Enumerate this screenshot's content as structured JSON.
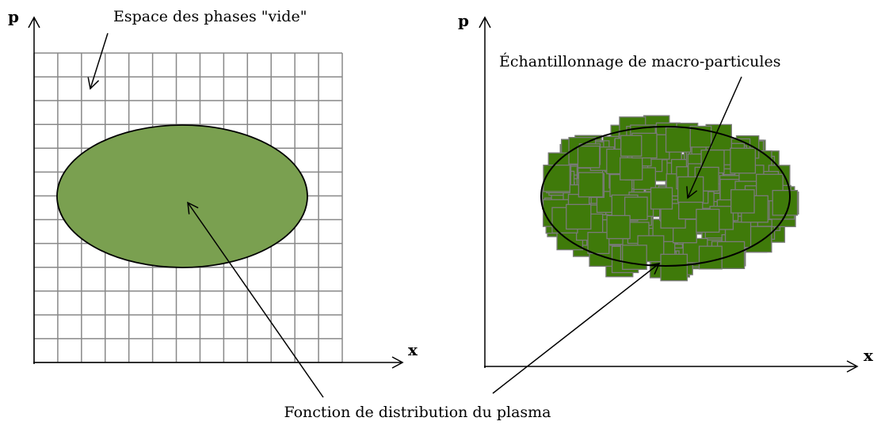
{
  "left_panel": {
    "y_axis_label": "p",
    "x_axis_label": "x",
    "annotation": "Espace des phases \"vide\""
  },
  "right_panel": {
    "y_axis_label": "p",
    "x_axis_label": "x",
    "annotation": "Échantillonnage de macro-particules"
  },
  "caption": "Fonction de distribution du plasma"
}
